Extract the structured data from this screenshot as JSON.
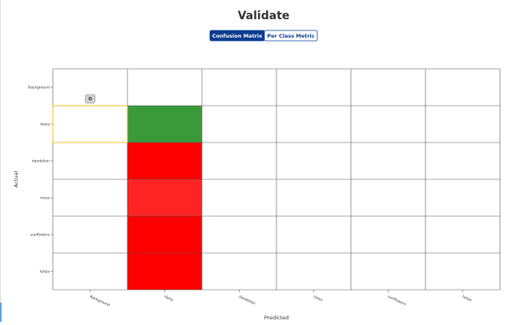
{
  "header": {
    "title": "Validate"
  },
  "tabs": [
    {
      "label": "Confusion Matrix",
      "active": true
    },
    {
      "label": "Per Class Metric",
      "active": false
    }
  ],
  "matrix": {
    "x_label": "Predicted",
    "y_label": "Actual",
    "rows": [
      "Background",
      "daisy",
      "dandelion",
      "roses",
      "sunflowers",
      "tulips"
    ],
    "columns": [
      "Background",
      "daisy",
      "dandelion",
      "roses",
      "sunflowers",
      "tulips"
    ],
    "cell_colors": [
      [
        null,
        null,
        null,
        null,
        null,
        null
      ],
      [
        null,
        "#3a9a3a",
        null,
        null,
        null,
        null
      ],
      [
        null,
        "#ff0000",
        null,
        null,
        null,
        null
      ],
      [
        null,
        "#ff2424",
        null,
        null,
        null,
        null
      ],
      [
        null,
        "#ff0000",
        null,
        null,
        null,
        null
      ],
      [
        null,
        "#ff0000",
        null,
        null,
        null,
        null
      ]
    ],
    "tooltip": {
      "text": "0",
      "row": 1,
      "column": 0
    }
  }
}
